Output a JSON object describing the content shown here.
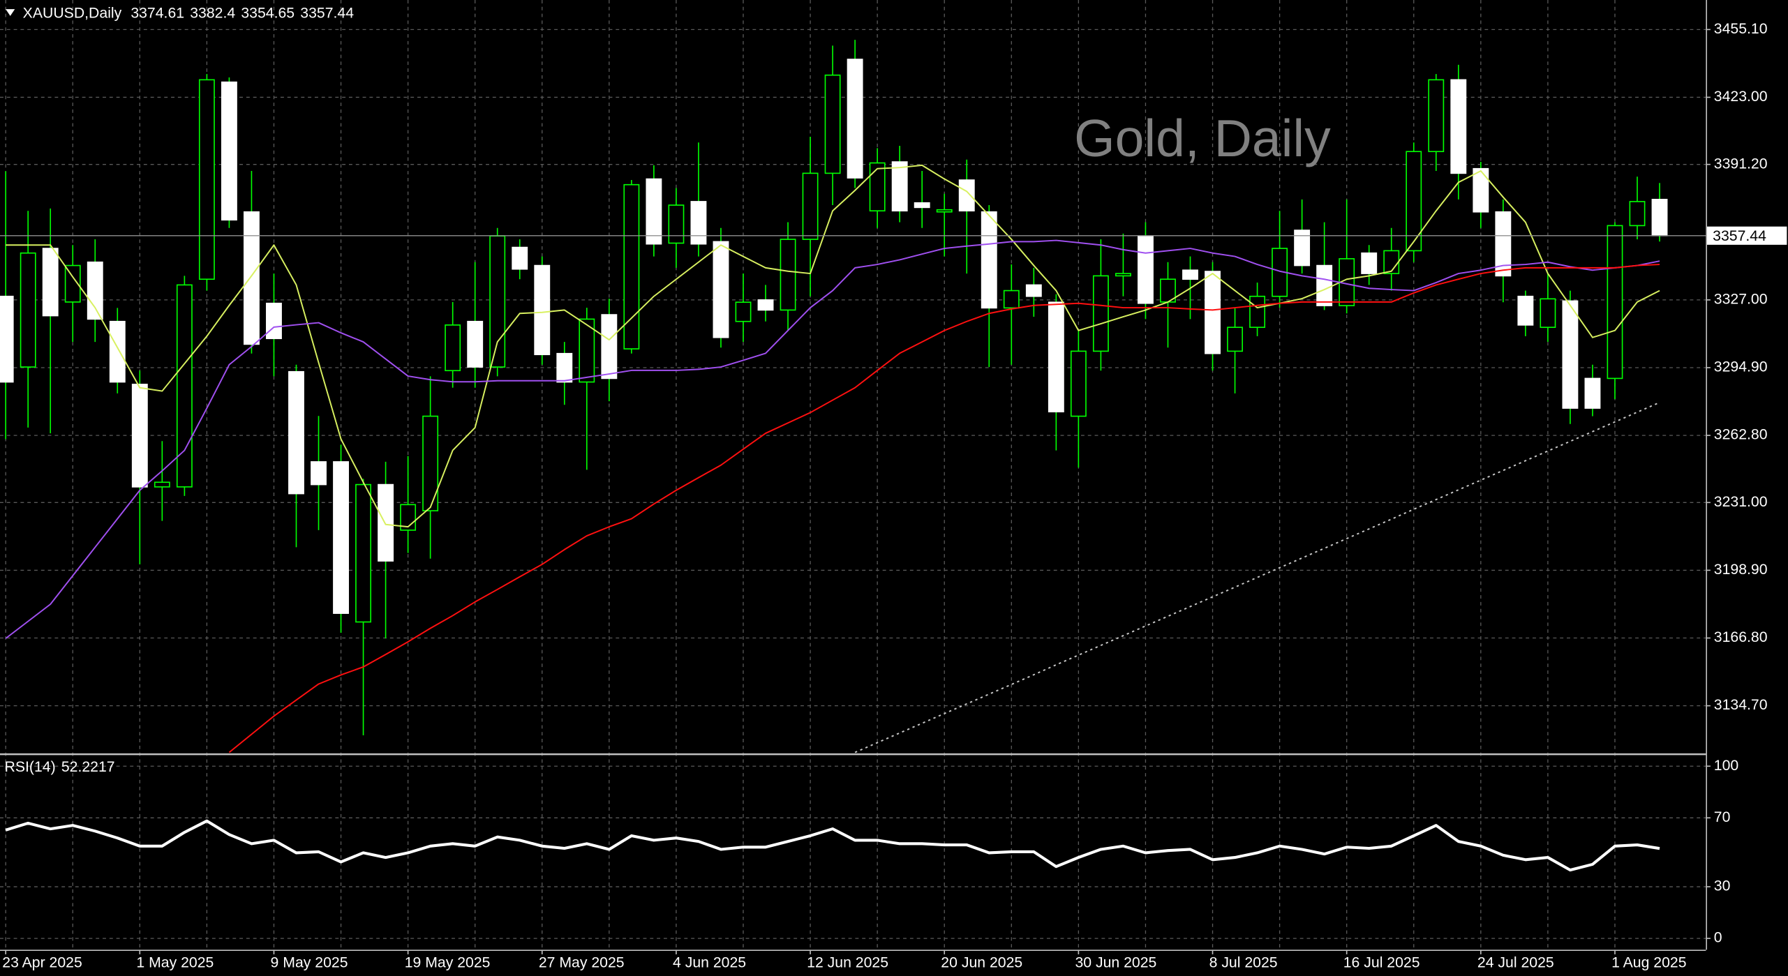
{
  "chart_data": [
    {
      "type": "candlestick",
      "symbol": "XAUUSD,Daily",
      "watermark": "Gold, Daily",
      "categories": [
        "23 Apr 2025",
        null,
        null,
        null,
        null,
        null,
        "1 May 2025",
        null,
        null,
        null,
        null,
        null,
        "9 May 2025",
        null,
        null,
        null,
        null,
        null,
        "19 May 2025",
        null,
        null,
        null,
        null,
        null,
        "27 May 2025",
        null,
        null,
        null,
        null,
        null,
        "4 Jun 2025",
        null,
        null,
        null,
        null,
        null,
        "12 Jun 2025",
        null,
        null,
        null,
        null,
        null,
        "20 Jun 2025",
        null,
        null,
        null,
        null,
        null,
        "30 Jun 2025",
        null,
        null,
        null,
        null,
        null,
        "8 Jul 2025",
        null,
        null,
        null,
        null,
        null,
        "16 Jul 2025",
        null,
        null,
        null,
        null,
        null,
        "24 Jul 2025",
        null,
        null,
        null,
        null,
        null,
        "1 Aug 2025",
        null,
        null
      ],
      "open": [
        3328.7,
        3295.2,
        3351.4,
        3326.0,
        3344.9,
        3316.8,
        3287.0,
        3238.4,
        3238.4,
        3336.8,
        3430.2,
        3368.7,
        3325.4,
        3293.0,
        3250.3,
        3250.3,
        3174.4,
        3239.5,
        3217.9,
        3227.1,
        3293.5,
        3316.8,
        3295.2,
        3351.9,
        3343.3,
        3301.6,
        3288.1,
        3320.0,
        3303.8,
        3384.3,
        3353.9,
        3373.6,
        3354.6,
        3316.8,
        3327.0,
        3322.2,
        3355.7,
        3387.0,
        3441.0,
        3369.2,
        3392.4,
        3373.0,
        3368.7,
        3383.8,
        3368.7,
        3323.2,
        3334.1,
        3325.9,
        3271.9,
        3302.7,
        3338.4,
        3357.3,
        3326.0,
        3341.1,
        3340.5,
        3302.7,
        3314.0,
        3328.7,
        3360.0,
        3343.3,
        3324.3,
        3349.2,
        3339.5,
        3350.3,
        3397.3,
        3431.3,
        3389.2,
        3368.7,
        3328.7,
        3314.0,
        3326.5,
        3289.8,
        3289.8,
        3362.2,
        3374.61
      ],
      "high": [
        3388.0,
        3369.2,
        3370.3,
        3353.0,
        3355.7,
        3323.2,
        3293.5,
        3260.1,
        3338.4,
        3434.0,
        3432.4,
        3388.1,
        3339.5,
        3296.3,
        3272.0,
        3258.4,
        3242.2,
        3250.3,
        3253.0,
        3290.8,
        3326.0,
        3344.9,
        3361.1,
        3355.7,
        3347.6,
        3307.1,
        3323.3,
        3327.6,
        3383.8,
        3390.8,
        3380.0,
        3401.6,
        3361.1,
        3339.5,
        3334.1,
        3363.8,
        3404.3,
        3447.5,
        3450.2,
        3398.9,
        3400.0,
        3388.1,
        3377.3,
        3393.5,
        3371.9,
        3343.8,
        3342.2,
        3329.7,
        3312.4,
        3355.7,
        3358.4,
        3363.8,
        3344.9,
        3347.6,
        3344.9,
        3323.3,
        3335.2,
        3369.2,
        3374.6,
        3363.8,
        3374.6,
        3353.0,
        3361.1,
        3401.6,
        3434.0,
        3438.4,
        3392.4,
        3374.6,
        3331.4,
        3339.5,
        3331.4,
        3296.3,
        3363.8,
        3385.4,
        3382.4
      ],
      "low": [
        3261.0,
        3266.5,
        3263.8,
        3307.1,
        3307.1,
        3282.7,
        3201.7,
        3222.3,
        3234.1,
        3331.4,
        3361.1,
        3301.6,
        3290.8,
        3209.8,
        3217.9,
        3169.3,
        3120.7,
        3166.6,
        3207.1,
        3204.4,
        3285.4,
        3285.4,
        3290.8,
        3336.8,
        3296.3,
        3277.3,
        3246.5,
        3279.0,
        3301.6,
        3347.6,
        3342.2,
        3347.6,
        3304.4,
        3307.1,
        3316.8,
        3312.4,
        3328.7,
        3371.9,
        3380.0,
        3361.1,
        3363.8,
        3361.1,
        3347.6,
        3339.5,
        3295.2,
        3296.3,
        3319.0,
        3255.7,
        3247.6,
        3293.5,
        3328.7,
        3317.9,
        3304.4,
        3317.9,
        3293.5,
        3282.7,
        3309.8,
        3323.3,
        3339.5,
        3322.2,
        3320.6,
        3334.1,
        3331.4,
        3344.9,
        3388.1,
        3374.6,
        3361.1,
        3325.9,
        3309.8,
        3307.1,
        3268.2,
        3271.9,
        3280.0,
        3355.7,
        3354.65
      ],
      "close": [
        3288.1,
        3349.2,
        3319.5,
        3343.3,
        3317.9,
        3288.1,
        3238.4,
        3240.6,
        3334.1,
        3431.3,
        3364.9,
        3306.0,
        3308.7,
        3235.2,
        3239.5,
        3178.5,
        3239.5,
        3203.3,
        3230.0,
        3271.9,
        3315.1,
        3295.2,
        3357.3,
        3341.6,
        3301.1,
        3288.1,
        3317.9,
        3289.8,
        3381.6,
        3353.5,
        3371.9,
        3353.5,
        3309.2,
        3325.9,
        3322.2,
        3355.7,
        3387.0,
        3433.5,
        3384.8,
        3391.9,
        3369.2,
        3370.8,
        3369.7,
        3369.2,
        3323.2,
        3331.4,
        3328.7,
        3274.0,
        3302.7,
        3338.4,
        3339.5,
        3325.4,
        3336.8,
        3336.8,
        3301.6,
        3314.0,
        3328.7,
        3351.4,
        3343.3,
        3324.3,
        3346.5,
        3339.5,
        3350.3,
        3397.3,
        3431.3,
        3387.0,
        3368.7,
        3338.4,
        3315.1,
        3327.5,
        3275.7,
        3275.7,
        3362.2,
        3373.6,
        3357.44
      ],
      "bull_color": "#000000",
      "bear_color": "#ffffff",
      "wick_color": "#00ff00",
      "series": [
        {
          "color": "#d8f060",
          "style": "solid",
          "values": [
            3353.0,
            3353.0,
            3353.0,
            3337.9,
            3323.3,
            3304.4,
            3285.4,
            3283.8,
            3296.8,
            3309.8,
            3324.4,
            3338.4,
            3353.0,
            3334.1,
            3297.3,
            3261.1,
            3240.6,
            3220.6,
            3219.5,
            3228.7,
            3255.7,
            3266.5,
            3307.1,
            3320.6,
            3321.1,
            3322.2,
            3315.2,
            3308.1,
            3318.4,
            3328.7,
            3336.8,
            3344.9,
            3353.0,
            3347.6,
            3342.2,
            3340.6,
            3339.5,
            3369.2,
            3378.9,
            3389.2,
            3389.7,
            3390.8,
            3384.3,
            3378.4,
            3367.0,
            3355.7,
            3343.3,
            3331.4,
            3312.5,
            3315.7,
            3319.0,
            3322.2,
            3326.0,
            3332.5,
            3339.5,
            3331.4,
            3323.3,
            3325.4,
            3327.6,
            3331.9,
            3336.8,
            3338.4,
            3340.6,
            3354.6,
            3369.2,
            3382.7,
            3388.1,
            3375.7,
            3363.8,
            3339.5,
            3324.4,
            3309.2,
            3312.5,
            3326.0,
            3331.4
          ]
        },
        {
          "color": "#a050f0",
          "style": "solid",
          "values": [
            3166.6,
            3174.7,
            3182.8,
            3196.3,
            3209.8,
            3223.3,
            3236.8,
            3246.0,
            3255.7,
            3275.7,
            3296.3,
            3304.9,
            3314.1,
            3315.2,
            3316.2,
            3311.4,
            3307.1,
            3299.0,
            3290.9,
            3289.2,
            3288.2,
            3288.2,
            3288.7,
            3288.7,
            3288.7,
            3288.7,
            3290.3,
            3291.9,
            3293.6,
            3293.6,
            3293.6,
            3294.1,
            3295.2,
            3298.4,
            3301.7,
            3312.5,
            3323.3,
            3331.4,
            3342.2,
            3343.8,
            3346.0,
            3348.7,
            3351.4,
            3352.5,
            3353.5,
            3354.6,
            3354.6,
            3355.2,
            3354.1,
            3353.0,
            3350.8,
            3349.2,
            3350.3,
            3351.4,
            3349.2,
            3347.6,
            3343.8,
            3340.6,
            3338.4,
            3336.8,
            3334.6,
            3332.5,
            3331.9,
            3331.4,
            3335.2,
            3339.5,
            3341.1,
            3343.3,
            3343.8,
            3344.9,
            3342.7,
            3341.1,
            3342.2,
            3343.3,
            3345.4
          ]
        },
        {
          "color": "#ff1010",
          "style": "solid",
          "values": [
            null,
            null,
            null,
            null,
            null,
            null,
            null,
            null,
            null,
            null,
            3112.6,
            3121.2,
            3129.8,
            3137.4,
            3145.0,
            3149.3,
            3153.1,
            3159.0,
            3165.0,
            3171.4,
            3177.4,
            3183.9,
            3189.8,
            3195.8,
            3201.7,
            3208.7,
            3215.2,
            3219.5,
            3223.3,
            3230.3,
            3236.8,
            3242.8,
            3248.7,
            3256.3,
            3263.8,
            3268.7,
            3273.6,
            3279.5,
            3285.4,
            3293.6,
            3301.7,
            3307.1,
            3312.5,
            3316.8,
            3320.6,
            3322.7,
            3324.4,
            3324.9,
            3325.4,
            3324.4,
            3323.3,
            3323.3,
            3323.3,
            3322.7,
            3322.2,
            3323.3,
            3324.4,
            3325.4,
            3326.0,
            3326.0,
            3326.0,
            3326.0,
            3326.0,
            3330.3,
            3334.1,
            3336.8,
            3339.5,
            3341.1,
            3342.2,
            3342.2,
            3342.2,
            3342.2,
            3342.2,
            3343.3,
            3343.8
          ]
        },
        {
          "color": "#c8c8c8",
          "style": "dotted",
          "values": [
            null,
            null,
            null,
            null,
            null,
            null,
            null,
            null,
            null,
            null,
            null,
            null,
            null,
            null,
            null,
            null,
            null,
            null,
            null,
            null,
            null,
            null,
            null,
            null,
            null,
            null,
            null,
            null,
            null,
            null,
            null,
            null,
            null,
            null,
            null,
            null,
            null,
            null,
            3112.6,
            3117.2,
            3121.8,
            3126.4,
            3131.0,
            3135.6,
            3140.2,
            3144.8,
            3149.4,
            3154.1,
            3158.7,
            3163.3,
            3167.9,
            3172.5,
            3177.1,
            3181.7,
            3186.3,
            3190.9,
            3195.5,
            3200.1,
            3204.7,
            3209.3,
            3213.9,
            3218.5,
            3223.1,
            3227.8,
            3232.4,
            3237.0,
            3241.6,
            3246.2,
            3250.8,
            3255.4,
            3260.0,
            3264.6,
            3269.2,
            3273.8,
            3278.4
          ]
        }
      ],
      "ylim": [
        3112.0,
        3469.1
      ],
      "yticks": [
        {
          "value": 3455.1,
          "label": "3455.10"
        },
        {
          "value": 3423,
          "label": "3423.00"
        },
        {
          "value": 3391.2,
          "label": "3391.20"
        },
        {
          "value": 3327,
          "label": "3327.00"
        },
        {
          "value": 3294.9,
          "label": "3294.90"
        },
        {
          "value": 3262.8,
          "label": "3262.80"
        },
        {
          "value": 3231,
          "label": "3231.00"
        },
        {
          "value": 3198.9,
          "label": "3198.90"
        },
        {
          "value": 3166.8,
          "label": "3166.80"
        },
        {
          "value": 3134.7,
          "label": "3134.70"
        }
      ],
      "grid": true
    },
    {
      "type": "line",
      "title": "RSI(14)",
      "current": 52.2217,
      "series": [
        {
          "color": "#ffffff",
          "style": "solid",
          "values": [
            62.9,
            66.9,
            63.6,
            65.6,
            62.3,
            58.3,
            53.6,
            53.6,
            61.6,
            68.2,
            60.3,
            55.0,
            57.0,
            49.7,
            50.3,
            44.4,
            49.7,
            47.0,
            49.7,
            53.6,
            55.0,
            53.6,
            58.9,
            57.0,
            53.6,
            52.3,
            55.0,
            51.7,
            59.6,
            57.0,
            58.3,
            56.3,
            51.7,
            53.0,
            53.0,
            56.3,
            59.6,
            63.6,
            57.0,
            57.0,
            55.0,
            55.0,
            54.3,
            54.3,
            49.7,
            50.3,
            50.3,
            41.7,
            47.0,
            51.7,
            53.6,
            49.7,
            51.0,
            51.7,
            45.7,
            47.0,
            49.7,
            53.6,
            51.7,
            49.0,
            53.0,
            52.3,
            53.6,
            59.6,
            65.6,
            56.3,
            53.6,
            48.3,
            45.7,
            47.0,
            39.7,
            43.0,
            53.6,
            54.3,
            52.2217
          ]
        }
      ],
      "ylim": [
        -6.6,
        106.6
      ],
      "yticks": [
        100,
        70,
        30,
        0
      ],
      "grid": true
    }
  ]
}
